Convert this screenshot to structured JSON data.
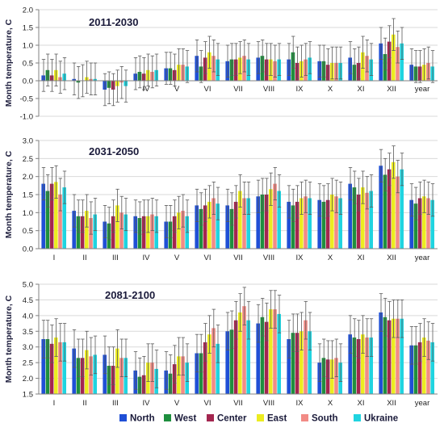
{
  "series_names": [
    "North",
    "West",
    "Center",
    "East",
    "South",
    "Ukraine"
  ],
  "colors": [
    "#1f4fd6",
    "#1e8f3e",
    "#a3264f",
    "#ecec20",
    "#f28b85",
    "#20d4e0"
  ],
  "chart_data": [
    {
      "type": "bar",
      "title": "2011-2030",
      "ylabel": "Month temperature, C",
      "ylim": [
        -1.0,
        2.0
      ],
      "yticks": [
        "-1.0",
        "-0.5",
        "0.0",
        "0.5",
        "1.0",
        "1.5",
        "2.0"
      ],
      "categories": [
        "I",
        "II",
        "III",
        "IV",
        "V",
        "VI",
        "VII",
        "VIII",
        "IX",
        "X",
        "XI",
        "XII",
        "year"
      ],
      "series": [
        {
          "name": "North",
          "values": [
            0.15,
            0.05,
            -0.25,
            0.2,
            0.35,
            0.7,
            0.55,
            0.65,
            0.6,
            0.55,
            0.65,
            1.05,
            0.45
          ]
        },
        {
          "name": "West",
          "values": [
            0.3,
            -0.05,
            -0.2,
            0.25,
            0.35,
            0.4,
            0.6,
            0.7,
            0.8,
            0.55,
            0.45,
            0.75,
            0.4
          ]
        },
        {
          "name": "Center",
          "values": [
            0.15,
            0.0,
            -0.25,
            0.2,
            0.3,
            0.65,
            0.6,
            0.6,
            0.5,
            0.45,
            0.5,
            1.1,
            0.4
          ]
        },
        {
          "name": "East",
          "values": [
            0.3,
            0.1,
            -0.15,
            0.3,
            0.45,
            0.8,
            0.65,
            0.6,
            0.55,
            0.5,
            0.8,
            1.3,
            0.45
          ]
        },
        {
          "name": "South",
          "values": [
            0.1,
            0.05,
            -0.05,
            0.25,
            0.45,
            0.7,
            0.7,
            0.55,
            0.6,
            0.5,
            0.7,
            0.95,
            0.5
          ]
        },
        {
          "name": "Ukraine",
          "values": [
            0.2,
            0.05,
            -0.15,
            0.3,
            0.4,
            0.6,
            0.6,
            0.6,
            0.65,
            0.5,
            0.6,
            1.05,
            0.4
          ]
        }
      ],
      "error": 0.45
    },
    {
      "type": "bar",
      "title": "2031-2050",
      "ylabel": "Month temperature, C",
      "ylim": [
        0.0,
        3.0
      ],
      "yticks": [
        "0.0",
        "0.5",
        "1.0",
        "1.5",
        "2.0",
        "2.5",
        "3.0"
      ],
      "categories": [
        "I",
        "II",
        "III",
        "IV",
        "V",
        "VI",
        "VII",
        "VIII",
        "IX",
        "X",
        "XI",
        "XII",
        "year"
      ],
      "series": [
        {
          "name": "North",
          "values": [
            1.8,
            1.05,
            0.75,
            0.9,
            0.75,
            1.2,
            1.2,
            1.45,
            1.3,
            1.35,
            1.8,
            2.3,
            1.35
          ]
        },
        {
          "name": "West",
          "values": [
            1.6,
            0.9,
            0.7,
            0.85,
            0.75,
            1.1,
            1.1,
            1.5,
            1.2,
            1.3,
            1.7,
            2.05,
            1.25
          ]
        },
        {
          "name": "Center",
          "values": [
            1.8,
            0.9,
            0.9,
            0.9,
            0.9,
            1.2,
            1.3,
            1.5,
            1.3,
            1.35,
            1.5,
            2.2,
            1.4
          ]
        },
        {
          "name": "East",
          "values": [
            1.85,
            1.05,
            1.2,
            0.9,
            1.0,
            1.3,
            1.6,
            1.65,
            1.4,
            1.5,
            1.7,
            2.4,
            1.45
          ]
        },
        {
          "name": "South",
          "values": [
            1.5,
            0.85,
            1.0,
            0.95,
            1.05,
            1.4,
            1.4,
            1.8,
            1.45,
            1.45,
            1.55,
            2.0,
            1.4
          ]
        },
        {
          "name": "Ukraine",
          "values": [
            1.7,
            0.95,
            0.95,
            0.9,
            0.9,
            1.25,
            1.4,
            1.6,
            1.4,
            1.4,
            1.6,
            2.2,
            1.35
          ]
        }
      ],
      "error": 0.45
    },
    {
      "type": "bar",
      "title": "2081-2100",
      "ylabel": "Month temperature, C",
      "ylim": [
        1.5,
        5.0
      ],
      "yticks": [
        "1.5",
        "2.0",
        "2.5",
        "3.0",
        "3.5",
        "4.0",
        "4.5",
        "5.0"
      ],
      "categories": [
        "I",
        "II",
        "III",
        "IV",
        "V",
        "VI",
        "VII",
        "VIII",
        "IX",
        "X",
        "XI",
        "XII",
        "year"
      ],
      "series": [
        {
          "name": "North",
          "values": [
            3.25,
            2.95,
            2.75,
            2.25,
            2.25,
            2.8,
            3.5,
            3.75,
            3.25,
            2.5,
            3.4,
            4.1,
            3.05
          ]
        },
        {
          "name": "West",
          "values": [
            3.25,
            2.65,
            2.4,
            2.05,
            2.15,
            2.8,
            3.55,
            3.95,
            3.45,
            2.65,
            3.3,
            3.95,
            3.05
          ]
        },
        {
          "name": "Center",
          "values": [
            3.1,
            2.65,
            2.4,
            2.1,
            2.45,
            3.15,
            3.85,
            3.8,
            3.45,
            2.6,
            3.25,
            3.85,
            3.15
          ]
        },
        {
          "name": "East",
          "values": [
            3.3,
            2.9,
            2.95,
            2.5,
            2.7,
            3.4,
            4.1,
            4.2,
            3.5,
            2.6,
            3.4,
            3.9,
            3.3
          ]
        },
        {
          "name": "South",
          "values": [
            3.15,
            2.7,
            2.65,
            2.5,
            2.7,
            3.6,
            4.3,
            4.2,
            3.85,
            2.65,
            3.3,
            3.9,
            3.2
          ]
        },
        {
          "name": "Ukraine",
          "values": [
            3.15,
            2.75,
            2.65,
            2.3,
            2.5,
            3.1,
            3.85,
            4.05,
            3.5,
            2.5,
            3.3,
            3.9,
            3.15
          ]
        }
      ],
      "error": 0.6
    }
  ]
}
